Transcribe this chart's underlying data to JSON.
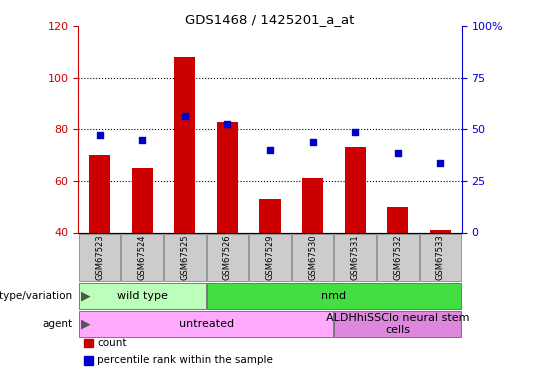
{
  "title": "GDS1468 / 1425201_a_at",
  "samples": [
    "GSM67523",
    "GSM67524",
    "GSM67525",
    "GSM67526",
    "GSM67529",
    "GSM67530",
    "GSM67531",
    "GSM67532",
    "GSM67533"
  ],
  "count_values": [
    70,
    65,
    108,
    83,
    53,
    61,
    73,
    50,
    41
  ],
  "percentile_values_left": [
    78,
    76,
    85,
    82,
    72,
    75,
    79,
    71,
    67
  ],
  "ylim_left": [
    40,
    120
  ],
  "ylim_right": [
    0,
    100
  ],
  "yticks_left": [
    40,
    60,
    80,
    100,
    120
  ],
  "yticks_right": [
    0,
    25,
    50,
    75,
    100
  ],
  "bar_color": "#cc0000",
  "dot_color": "#0000cc",
  "bar_width": 0.5,
  "genotype_groups": [
    {
      "label": "wild type",
      "start": 0,
      "end": 3,
      "color": "#bbffbb"
    },
    {
      "label": "nmd",
      "start": 3,
      "end": 9,
      "color": "#44dd44"
    }
  ],
  "agent_groups": [
    {
      "label": "untreated",
      "start": 0,
      "end": 6,
      "color": "#ffaaff"
    },
    {
      "label": "ALDHhiSSClo neural stem\ncells",
      "start": 6,
      "end": 9,
      "color": "#dd88dd"
    }
  ],
  "genotype_label": "genotype/variation",
  "agent_label": "agent",
  "legend_count": "count",
  "legend_percentile": "percentile rank within the sample",
  "left_ylabel_color": "#cc0000",
  "right_ylabel_color": "#0000cc"
}
